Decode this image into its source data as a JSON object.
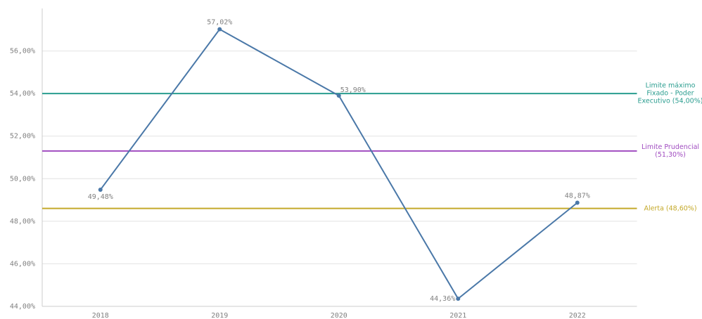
{
  "chart_data": {
    "type": "line",
    "categories": [
      "2018",
      "2019",
      "2020",
      "2021",
      "2022"
    ],
    "series": [
      {
        "color": "#4a78a8",
        "values": [
          49.48,
          57.02,
          53.9,
          44.36,
          48.87
        ],
        "value_labels": [
          "49,48%",
          "57,02%",
          "53,90%",
          "44,36%",
          "48,87%"
        ]
      }
    ],
    "ylim": [
      44,
      58
    ],
    "yticks": [
      {
        "value": 44,
        "label": "44,00%"
      },
      {
        "value": 46,
        "label": "46,00%"
      },
      {
        "value": 48,
        "label": "48,00%"
      },
      {
        "value": 50,
        "label": "50,00%"
      },
      {
        "value": 52,
        "label": "52,00%"
      },
      {
        "value": 54,
        "label": "54,00%"
      },
      {
        "value": 56,
        "label": "56,00%"
      }
    ],
    "grid": true,
    "reference_lines": [
      {
        "label": "Limite máximo Fixado - Poder Executivo (54,00%)",
        "value": 54,
        "color": "#2a9d8f"
      },
      {
        "label": "Limite Prudencial (51,30%)",
        "value": 51.3,
        "color": "#a04cc0"
      },
      {
        "label": "Alerta (48,60%)",
        "value": 48.6,
        "color": "#c4a92a"
      }
    ]
  }
}
